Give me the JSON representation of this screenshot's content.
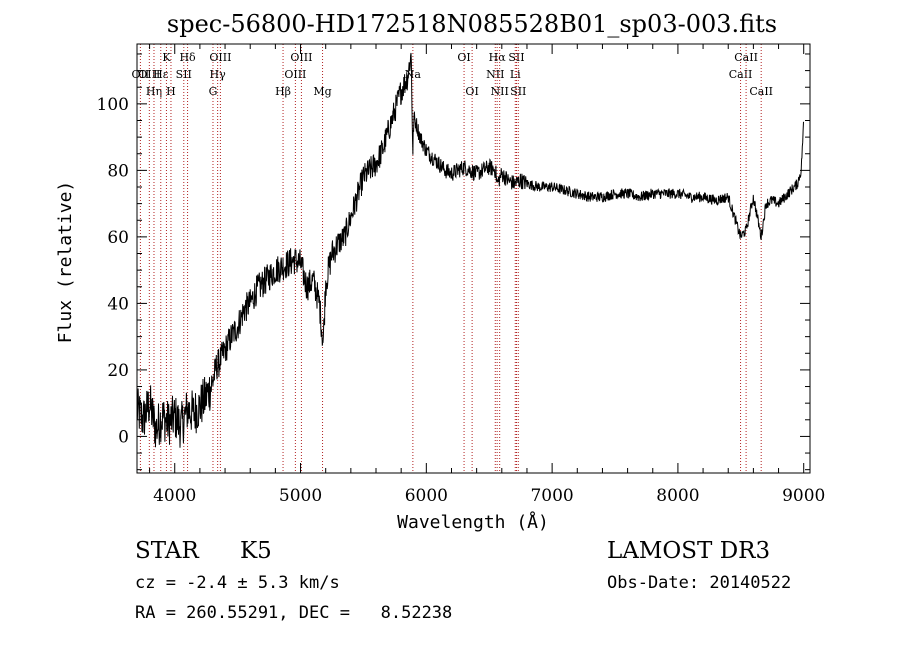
{
  "chart_data": {
    "type": "line",
    "title": "spec-56800-HD172518N085528B01_sp03-003.fits",
    "xlabel": "Wavelength (Å)",
    "ylabel": "Flux (relative)",
    "xlim": [
      3700,
      9050
    ],
    "ylim": [
      -11,
      118
    ],
    "xticks": [
      4000,
      5000,
      6000,
      7000,
      8000,
      9000
    ],
    "yticks": [
      0,
      20,
      40,
      60,
      80,
      100
    ],
    "grid": false,
    "series": [
      {
        "x": [
          3700,
          3750,
          3800,
          3850,
          3900,
          3950,
          4000,
          4050,
          4100,
          4150,
          4200,
          4250,
          4300,
          4330,
          4350,
          4400,
          4450,
          4500,
          4550,
          4600,
          4650,
          4700,
          4750,
          4800,
          4850,
          4900,
          4950,
          5000,
          5050,
          5100,
          5150,
          5180,
          5200,
          5250,
          5300,
          5350,
          5400,
          5450,
          5500,
          5550,
          5600,
          5650,
          5700,
          5750,
          5800,
          5850,
          5880,
          5893,
          5900,
          5920,
          5950,
          6000,
          6050,
          6100,
          6150,
          6200,
          6250,
          6300,
          6350,
          6400,
          6450,
          6500,
          6550,
          6563,
          6600,
          6650,
          6700,
          6750,
          6800,
          6900,
          7000,
          7100,
          7200,
          7300,
          7400,
          7500,
          7600,
          7700,
          7800,
          7900,
          8000,
          8100,
          8200,
          8300,
          8400,
          8498,
          8542,
          8600,
          8662,
          8700,
          8750,
          8800,
          8850,
          8900,
          8950,
          8980,
          9000
        ],
        "y": [
          8,
          5,
          10,
          2,
          6,
          4,
          6,
          3,
          8,
          7,
          9,
          12,
          16,
          21,
          22,
          26,
          30,
          33,
          38,
          40,
          44,
          46,
          48,
          50,
          51,
          52,
          53,
          52,
          45,
          47,
          40,
          28,
          46,
          55,
          58,
          60,
          66,
          72,
          78,
          80,
          82,
          86,
          92,
          98,
          104,
          108,
          115,
          84,
          96,
          94,
          90,
          86,
          84,
          82,
          80,
          79,
          80,
          81,
          80,
          79,
          80,
          81,
          80,
          76,
          79,
          77,
          76,
          77,
          76,
          75,
          75,
          74,
          73,
          72,
          72,
          73,
          73,
          72,
          73,
          73,
          73,
          72,
          72,
          71,
          72,
          60,
          62,
          72,
          60,
          70,
          71,
          70,
          72,
          74,
          76,
          80,
          95
        ]
      }
    ],
    "line_annotations": [
      {
        "x": 3727,
        "label": "OII",
        "row": 2
      },
      {
        "x": 3798,
        "label": "OIII",
        "row": 2
      },
      {
        "x": 3835,
        "label": "Hη",
        "row": 3
      },
      {
        "x": 3889,
        "label": "Hε",
        "row": 2
      },
      {
        "x": 3934,
        "label": "K",
        "row": 1
      },
      {
        "x": 3970,
        "label": "H",
        "row": 3
      },
      {
        "x": 4072,
        "label": "SII",
        "row": 2
      },
      {
        "x": 4102,
        "label": "Hδ",
        "row": 1
      },
      {
        "x": 4304,
        "label": "G",
        "row": 3
      },
      {
        "x": 4341,
        "label": "Hγ",
        "row": 2
      },
      {
        "x": 4363,
        "label": "OIII",
        "row": 1
      },
      {
        "x": 4861,
        "label": "Hβ",
        "row": 3
      },
      {
        "x": 4959,
        "label": "OIII",
        "row": 2
      },
      {
        "x": 5007,
        "label": "OIII",
        "row": 1
      },
      {
        "x": 5175,
        "label": "Mg",
        "row": 3
      },
      {
        "x": 5893,
        "label": "Na",
        "row": 2
      },
      {
        "x": 6300,
        "label": "OI",
        "row": 1
      },
      {
        "x": 6364,
        "label": "OI",
        "row": 3
      },
      {
        "x": 6548,
        "label": "NII",
        "row": 2
      },
      {
        "x": 6563,
        "label": "Hα",
        "row": 1
      },
      {
        "x": 6583,
        "label": "NII",
        "row": 3
      },
      {
        "x": 6707,
        "label": "Li",
        "row": 2
      },
      {
        "x": 6717,
        "label": "SII",
        "row": 1
      },
      {
        "x": 6731,
        "label": "SII",
        "row": 3
      },
      {
        "x": 8498,
        "label": "CaII",
        "row": 2
      },
      {
        "x": 8542,
        "label": "CaII",
        "row": 1
      },
      {
        "x": 8662,
        "label": "CaII",
        "row": 3
      }
    ]
  },
  "info": {
    "object_class": "STAR",
    "subclass": "K5",
    "survey": "LAMOST DR3",
    "redshift": "cz = -2.4 ± 5.3 km/s",
    "obs_date": "Obs-Date: 20140522",
    "coordinates": "RA = 260.55291, DEC =   8.52238"
  }
}
